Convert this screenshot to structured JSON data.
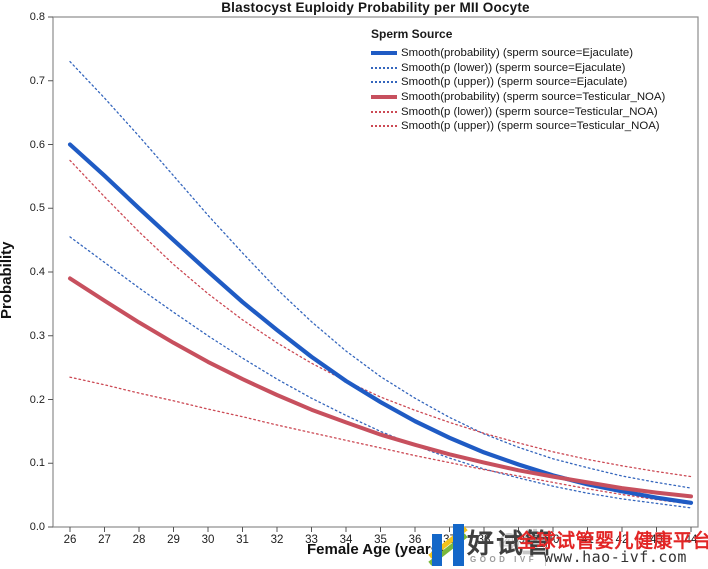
{
  "title": "Blastocyst Euploidy Probability per MII Oocyte",
  "axes": {
    "x": {
      "label": "Female Age (years)",
      "min": 26,
      "max": 44,
      "ticks": [
        26,
        27,
        28,
        29,
        30,
        31,
        32,
        33,
        34,
        35,
        36,
        37,
        38,
        39,
        40,
        41,
        42,
        43,
        44
      ]
    },
    "y": {
      "label": "Probability",
      "min": 0.0,
      "max": 0.8,
      "ticks": [
        "0.0",
        "0.1",
        "0.2",
        "0.3",
        "0.4",
        "0.5",
        "0.6",
        "0.7",
        "0.8"
      ]
    }
  },
  "legend": {
    "title": "Sperm Source",
    "items": [
      {
        "label": "Smooth(probability) (sperm source=Ejaculate)",
        "color": "#1f5bc4",
        "style": "solid"
      },
      {
        "label": "Smooth(p (lower)) (sperm source=Ejaculate)",
        "color": "#3566bd",
        "style": "dotted"
      },
      {
        "label": "Smooth(p (upper)) (sperm source=Ejaculate)",
        "color": "#3566bd",
        "style": "dotted"
      },
      {
        "label": "Smooth(probability) (sperm source=Testicular_NOA)",
        "color": "#c7505e",
        "style": "solid"
      },
      {
        "label": "Smooth(p (lower)) (sperm source=Testicular_NOA)",
        "color": "#cc4a55",
        "style": "dotted"
      },
      {
        "label": "Smooth(p (upper)) (sperm source=Testicular_NOA)",
        "color": "#cc4a55",
        "style": "dotted"
      }
    ]
  },
  "chart_data": {
    "type": "line",
    "title": "Blastocyst Euploidy Probability per MII Oocyte",
    "xlabel": "Female Age (years)",
    "ylabel": "Probability",
    "xlim": [
      26,
      44
    ],
    "ylim": [
      0.0,
      0.8
    ],
    "grid": false,
    "legend_position": "top-right-inside",
    "x": [
      26,
      27,
      28,
      29,
      30,
      31,
      32,
      33,
      34,
      35,
      36,
      37,
      38,
      39,
      40,
      41,
      42,
      43,
      44
    ],
    "series": [
      {
        "name": "Smooth(p (upper)) (sperm source=Ejaculate)",
        "color": "#3566bd",
        "style": "dotted",
        "width": 1.3,
        "values": [
          0.73,
          0.673,
          0.613,
          0.551,
          0.489,
          0.43,
          0.373,
          0.322,
          0.276,
          0.236,
          0.202,
          0.172,
          0.146,
          0.125,
          0.107,
          0.093,
          0.08,
          0.07,
          0.061
        ]
      },
      {
        "name": "Smooth(p (lower)) (sperm source=Ejaculate)",
        "color": "#3566bd",
        "style": "dotted",
        "width": 1.3,
        "values": [
          0.455,
          0.415,
          0.375,
          0.337,
          0.3,
          0.265,
          0.232,
          0.202,
          0.175,
          0.15,
          0.128,
          0.108,
          0.091,
          0.077,
          0.064,
          0.053,
          0.044,
          0.037,
          0.03
        ]
      },
      {
        "name": "Smooth(p (upper)) (sperm source=Testicular_NOA)",
        "color": "#cc4a55",
        "style": "dotted",
        "width": 1.3,
        "values": [
          0.575,
          0.518,
          0.463,
          0.412,
          0.366,
          0.325,
          0.289,
          0.257,
          0.229,
          0.204,
          0.183,
          0.164,
          0.147,
          0.132,
          0.118,
          0.106,
          0.096,
          0.087,
          0.079
        ]
      },
      {
        "name": "Smooth(p (lower)) (sperm source=Testicular_NOA)",
        "color": "#cc4a55",
        "style": "dotted",
        "width": 1.3,
        "values": [
          0.235,
          0.223,
          0.21,
          0.198,
          0.185,
          0.173,
          0.16,
          0.148,
          0.136,
          0.124,
          0.112,
          0.101,
          0.09,
          0.08,
          0.07,
          0.06,
          0.051,
          0.043,
          0.036
        ]
      },
      {
        "name": "Smooth(probability) (sperm source=Ejaculate)",
        "color": "#1f5bc4",
        "style": "solid",
        "width": 4.2,
        "values": [
          0.6,
          0.551,
          0.5,
          0.45,
          0.401,
          0.353,
          0.309,
          0.267,
          0.229,
          0.196,
          0.166,
          0.14,
          0.117,
          0.098,
          0.081,
          0.067,
          0.056,
          0.046,
          0.038
        ]
      },
      {
        "name": "Smooth(probability) (sperm source=Testicular_NOA)",
        "color": "#c7505e",
        "style": "solid",
        "width": 4.0,
        "values": [
          0.39,
          0.355,
          0.321,
          0.289,
          0.259,
          0.232,
          0.207,
          0.184,
          0.164,
          0.145,
          0.129,
          0.114,
          0.101,
          0.089,
          0.079,
          0.07,
          0.061,
          0.054,
          0.048
        ]
      }
    ]
  },
  "watermark": {
    "brand": "好试管",
    "brand_sub": "GOOD IVF",
    "ghost_text": "④生",
    "tagline": "全球试管婴儿健康平台",
    "url": "www.hao-ivf.com",
    "colors": {
      "logo_blue": "#1467c8",
      "logo_yellow": "#f2c21c",
      "logo_green": "#7ab83c",
      "brand_text": "#3f3f3f",
      "tagline_red": "#e22626",
      "url_text": "#333333"
    }
  }
}
